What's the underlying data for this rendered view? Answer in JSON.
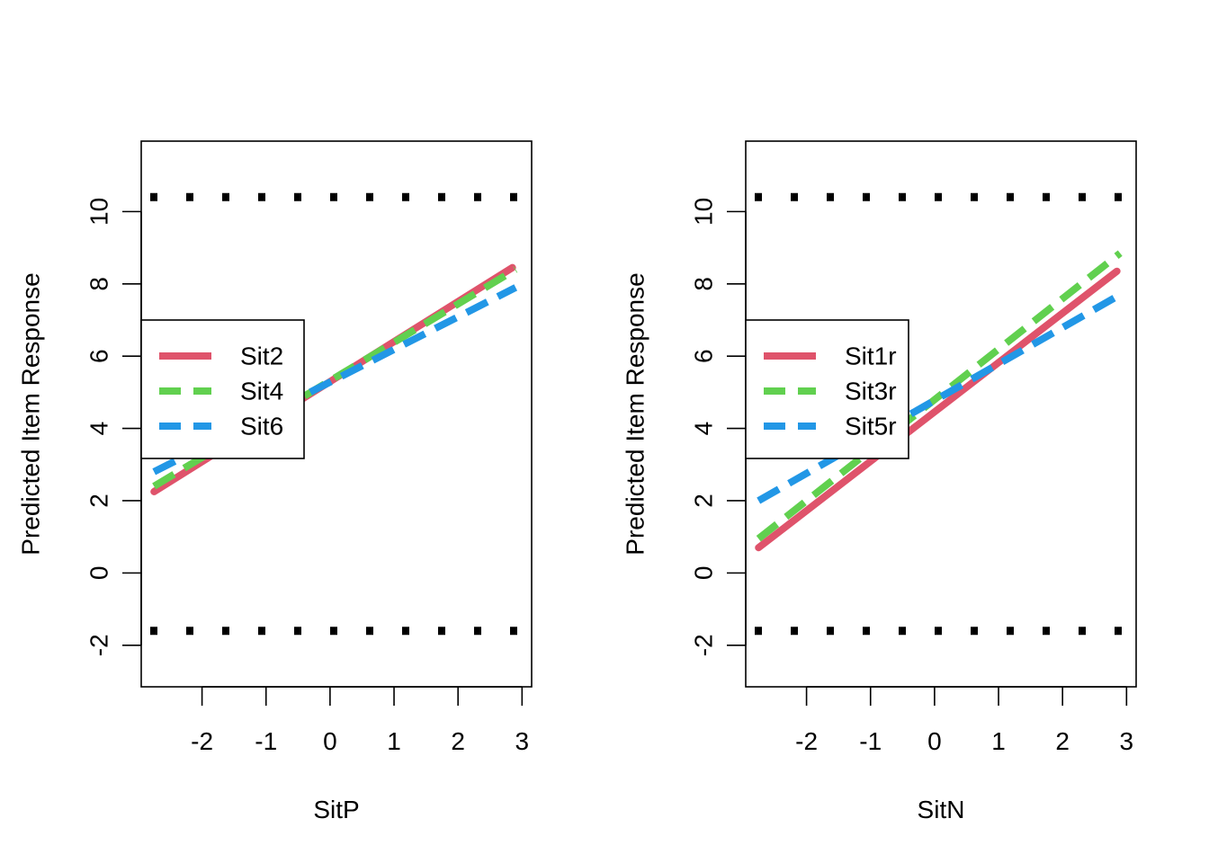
{
  "colors": {
    "red": "#DF536B",
    "green": "#61D04F",
    "blue": "#2297E6",
    "black": "#000000"
  },
  "chart_data": [
    {
      "type": "line",
      "xlabel": "SitP",
      "ylabel": "Predicted Item Response",
      "xlim": [
        -2.95,
        3.15
      ],
      "ylim": [
        -3.15,
        11.95
      ],
      "xticks": [
        "-2",
        "-1",
        "0",
        "1",
        "2",
        "3"
      ],
      "yticks": [
        "-2",
        "0",
        "2",
        "4",
        "6",
        "8",
        "10"
      ],
      "reference_lines": [
        {
          "y": 10.4,
          "style": "dotted"
        },
        {
          "y": -1.6,
          "style": "dotted"
        }
      ],
      "legend_position": "left",
      "series": [
        {
          "name": "Sit2",
          "style": "solid",
          "color_key": "red",
          "x": [
            -2.75,
            2.85
          ],
          "y": [
            2.25,
            8.45
          ]
        },
        {
          "name": "Sit4",
          "style": "dashed",
          "color_key": "green",
          "x": [
            -2.75,
            2.9
          ],
          "y": [
            2.4,
            8.4
          ]
        },
        {
          "name": "Sit6",
          "style": "dashed",
          "color_key": "blue",
          "x": [
            -2.75,
            2.9
          ],
          "y": [
            2.8,
            7.9
          ]
        }
      ]
    },
    {
      "type": "line",
      "xlabel": "SitN",
      "ylabel": "Predicted Item Response",
      "xlim": [
        -2.95,
        3.15
      ],
      "ylim": [
        -3.15,
        11.95
      ],
      "xticks": [
        "-2",
        "-1",
        "0",
        "1",
        "2",
        "3"
      ],
      "yticks": [
        "-2",
        "0",
        "2",
        "4",
        "6",
        "8",
        "10"
      ],
      "reference_lines": [
        {
          "y": 10.4,
          "style": "dotted"
        },
        {
          "y": -1.6,
          "style": "dotted"
        }
      ],
      "legend_position": "left",
      "series": [
        {
          "name": "Sit1r",
          "style": "solid",
          "color_key": "red",
          "x": [
            -2.75,
            2.85
          ],
          "y": [
            0.7,
            8.35
          ]
        },
        {
          "name": "Sit3r",
          "style": "dashed",
          "color_key": "green",
          "x": [
            -2.75,
            2.9
          ],
          "y": [
            0.95,
            8.85
          ]
        },
        {
          "name": "Sit5r",
          "style": "dashed",
          "color_key": "blue",
          "x": [
            -2.75,
            2.9
          ],
          "y": [
            2.0,
            7.7
          ]
        }
      ]
    }
  ]
}
